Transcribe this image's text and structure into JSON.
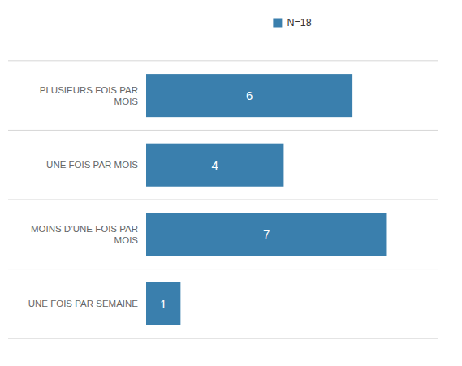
{
  "chart_data": {
    "type": "bar",
    "orientation": "horizontal",
    "categories": [
      "UNE FOIS PAR SEMAINE",
      "MOINS D’UNE FOIS PAR\nMOIS",
      "UNE FOIS PAR MOIS",
      "PLUSIEURS FOIS PAR\nMOIS"
    ],
    "series": [
      {
        "name": "N=18",
        "color": "#3a7fad",
        "values": [
          1,
          7,
          4,
          6
        ]
      }
    ],
    "xlim": [
      0,
      8.5
    ],
    "grid": true,
    "legend": "top",
    "data_labels": true,
    "tick_labels": "y"
  }
}
